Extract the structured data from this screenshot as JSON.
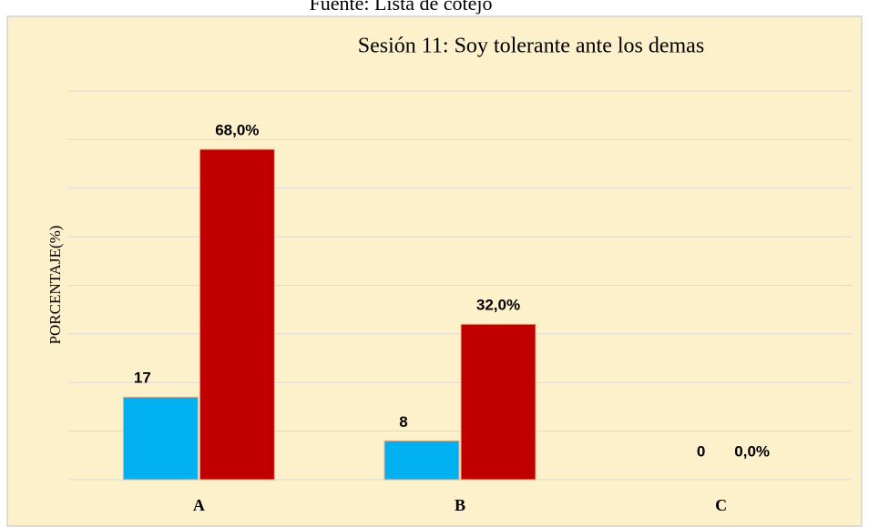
{
  "chart_data": {
    "type": "bar",
    "source": "Fuente: Lista de cotejo",
    "title": "Sesión 11: Soy tolerante ante los demas",
    "y_label": "PORCENTAJE(%)",
    "categories": [
      "A",
      "B",
      "C"
    ],
    "series": [
      {
        "color": "#00b0f0",
        "values": [
          17,
          8,
          0
        ]
      },
      {
        "color": "#c00000",
        "values": [
          68,
          32,
          0
        ],
        "value_labels": [
          "68,0%",
          "32,0%",
          "0,0%"
        ]
      }
    ],
    "ylim": [
      0,
      80
    ],
    "yticks": [
      0,
      10,
      20,
      30,
      40,
      50,
      60,
      70,
      80
    ],
    "grid": true
  }
}
